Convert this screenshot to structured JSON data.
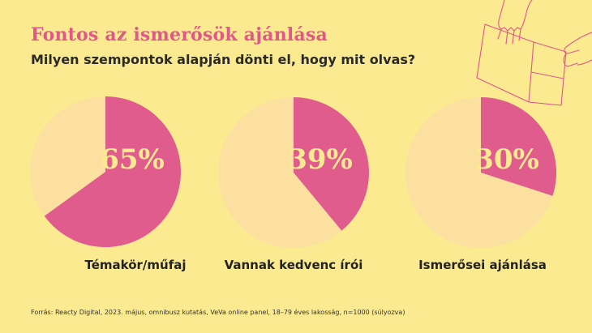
{
  "title": "Fontos az ismerősök ajánlása",
  "subtitle": "Milyen szempontok alapján dönti el, hogy mit olvas?",
  "source": "Forrás: Reacty Digital, 2023. május, omnibusz kutatás, VeVa online panel, 18–79 éves lakosság, n=1000 (súlyozva)",
  "colors": {
    "background": "#FBEA8F",
    "highlight": "#DF5C8C",
    "remainder": "#FCE0A0",
    "percent_text": "#FBEA8F"
  },
  "chart_data": {
    "type": "pie",
    "title": "Fontos az ismerősök ajánlása",
    "subtitle": "Milyen szempontok alapján dönti el, hogy mit olvas?",
    "categories": [
      "Témakör/műfaj",
      "Vannak kedvenc írói",
      "Ismerősei ajánlása"
    ],
    "values": [
      65,
      39,
      30
    ],
    "percent_labels": [
      "65%",
      "39%",
      "30%"
    ],
    "unit": "%"
  }
}
